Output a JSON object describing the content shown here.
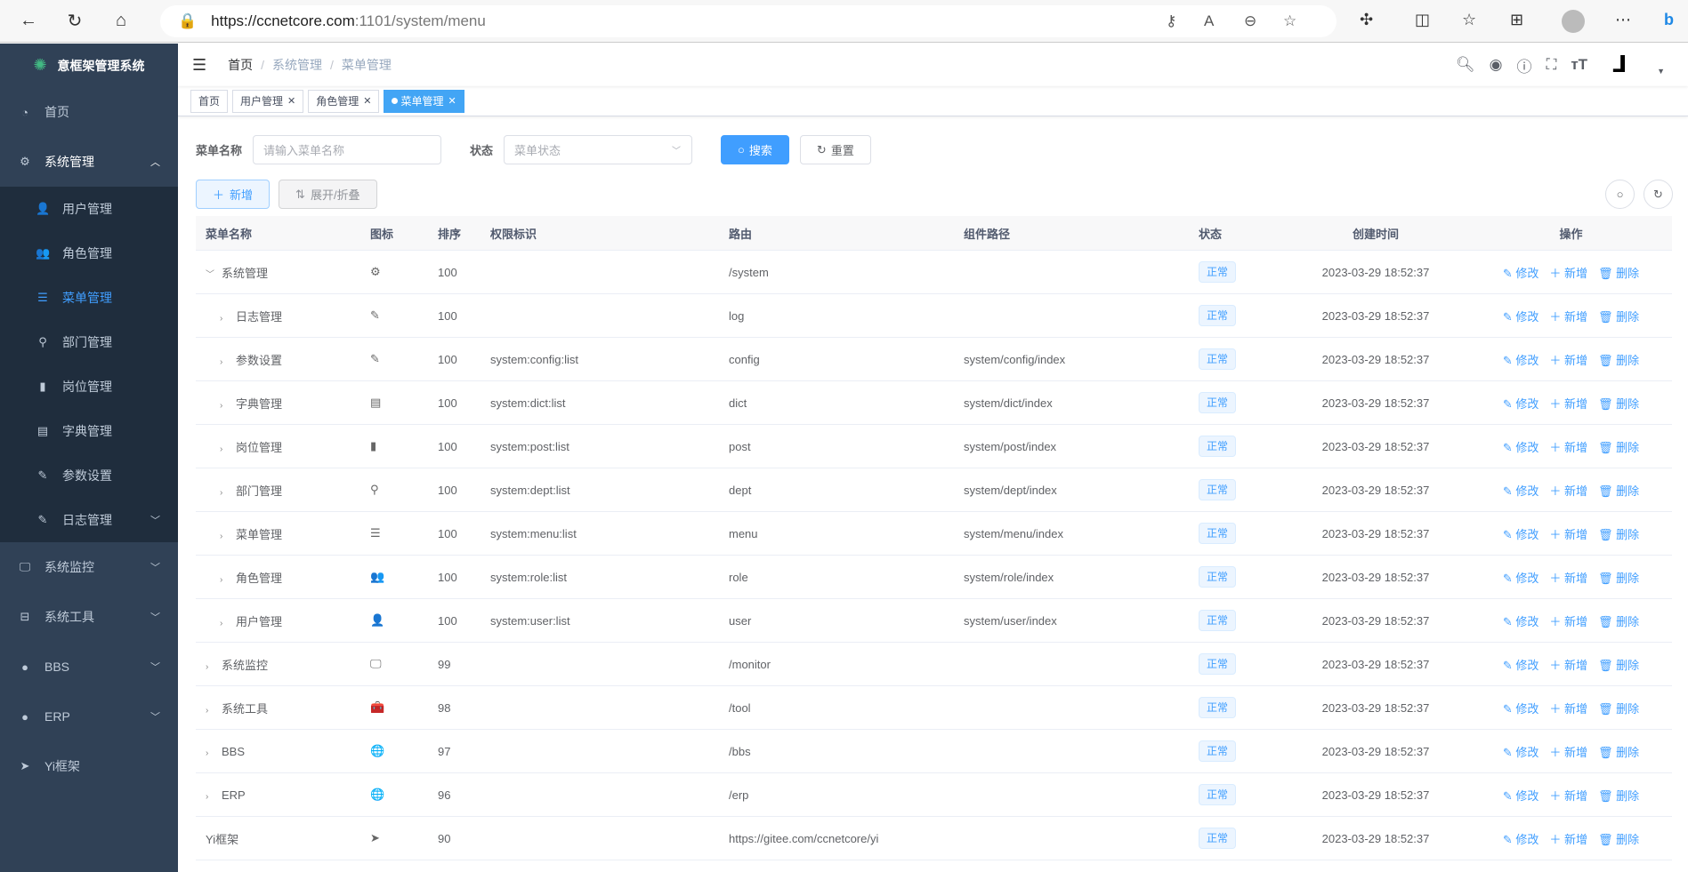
{
  "browser": {
    "url_host": "https://ccnetcore.com",
    "url_rest": ":1101/system/menu"
  },
  "sidebar": {
    "title": "意框架管理系统",
    "items": [
      {
        "label": "首页",
        "icon": "dashboard-icon"
      },
      {
        "label": "系统管理",
        "icon": "gear-icon",
        "expanded": true,
        "children": [
          {
            "label": "用户管理",
            "icon": "user-icon"
          },
          {
            "label": "角色管理",
            "icon": "peoples-icon"
          },
          {
            "label": "菜单管理",
            "icon": "tree-table-icon",
            "active": true
          },
          {
            "label": "部门管理",
            "icon": "tree-icon"
          },
          {
            "label": "岗位管理",
            "icon": "post-icon"
          },
          {
            "label": "字典管理",
            "icon": "dict-icon"
          },
          {
            "label": "参数设置",
            "icon": "edit-icon"
          },
          {
            "label": "日志管理",
            "icon": "log-icon"
          }
        ]
      },
      {
        "label": "系统监控",
        "icon": "monitor-icon"
      },
      {
        "label": "系统工具",
        "icon": "tool-icon"
      },
      {
        "label": "BBS",
        "icon": "globe-icon"
      },
      {
        "label": "ERP",
        "icon": "globe-icon"
      },
      {
        "label": "Yi框架",
        "icon": "send-icon"
      }
    ]
  },
  "breadcrumb": [
    "首页",
    "系统管理",
    "菜单管理"
  ],
  "tags": [
    {
      "label": "首页"
    },
    {
      "label": "用户管理"
    },
    {
      "label": "角色管理"
    },
    {
      "label": "菜单管理",
      "active": true
    }
  ],
  "search": {
    "name_label": "菜单名称",
    "name_placeholder": "请输入菜单名称",
    "status_label": "状态",
    "status_placeholder": "菜单状态",
    "search_btn": "搜索",
    "reset_btn": "重置"
  },
  "toolbar": {
    "add": "新增",
    "toggle": "展开/折叠"
  },
  "colors": {
    "primary": "#409eff",
    "sidebar": "#304156"
  },
  "table": {
    "headers": [
      "菜单名称",
      "图标",
      "排序",
      "权限标识",
      "路由",
      "组件路径",
      "状态",
      "创建时间",
      "操作"
    ],
    "actions": {
      "edit": "修改",
      "add": "新增",
      "delete": "删除"
    },
    "rows": [
      {
        "name": "系统管理",
        "level": 0,
        "arrow": "down",
        "icon": "⚙",
        "sort": "100",
        "perm": "",
        "route": "/system",
        "component": "",
        "status": "正常",
        "created": "2023-03-29 18:52:37"
      },
      {
        "name": "日志管理",
        "level": 1,
        "arrow": "right",
        "icon": "✎",
        "sort": "100",
        "perm": "",
        "route": "log",
        "component": "",
        "status": "正常",
        "created": "2023-03-29 18:52:37"
      },
      {
        "name": "参数设置",
        "level": 1,
        "arrow": "right",
        "icon": "✎",
        "sort": "100",
        "perm": "system:config:list",
        "route": "config",
        "component": "system/config/index",
        "status": "正常",
        "created": "2023-03-29 18:52:37"
      },
      {
        "name": "字典管理",
        "level": 1,
        "arrow": "right",
        "icon": "▤",
        "sort": "100",
        "perm": "system:dict:list",
        "route": "dict",
        "component": "system/dict/index",
        "status": "正常",
        "created": "2023-03-29 18:52:37"
      },
      {
        "name": "岗位管理",
        "level": 1,
        "arrow": "right",
        "icon": "▮",
        "sort": "100",
        "perm": "system:post:list",
        "route": "post",
        "component": "system/post/index",
        "status": "正常",
        "created": "2023-03-29 18:52:37"
      },
      {
        "name": "部门管理",
        "level": 1,
        "arrow": "right",
        "icon": "⚲",
        "sort": "100",
        "perm": "system:dept:list",
        "route": "dept",
        "component": "system/dept/index",
        "status": "正常",
        "created": "2023-03-29 18:52:37"
      },
      {
        "name": "菜单管理",
        "level": 1,
        "arrow": "right",
        "icon": "☰",
        "sort": "100",
        "perm": "system:menu:list",
        "route": "menu",
        "component": "system/menu/index",
        "status": "正常",
        "created": "2023-03-29 18:52:37"
      },
      {
        "name": "角色管理",
        "level": 1,
        "arrow": "right",
        "icon": "👥",
        "sort": "100",
        "perm": "system:role:list",
        "route": "role",
        "component": "system/role/index",
        "status": "正常",
        "created": "2023-03-29 18:52:37"
      },
      {
        "name": "用户管理",
        "level": 1,
        "arrow": "right",
        "icon": "👤",
        "sort": "100",
        "perm": "system:user:list",
        "route": "user",
        "component": "system/user/index",
        "status": "正常",
        "created": "2023-03-29 18:52:37"
      },
      {
        "name": "系统监控",
        "level": 0,
        "arrow": "right",
        "icon": "🖵",
        "sort": "99",
        "perm": "",
        "route": "/monitor",
        "component": "",
        "status": "正常",
        "created": "2023-03-29 18:52:37"
      },
      {
        "name": "系统工具",
        "level": 0,
        "arrow": "right",
        "icon": "🧰",
        "sort": "98",
        "perm": "",
        "route": "/tool",
        "component": "",
        "status": "正常",
        "created": "2023-03-29 18:52:37"
      },
      {
        "name": "BBS",
        "level": 0,
        "arrow": "right",
        "icon": "🌐",
        "sort": "97",
        "perm": "",
        "route": "/bbs",
        "component": "",
        "status": "正常",
        "created": "2023-03-29 18:52:37"
      },
      {
        "name": "ERP",
        "level": 0,
        "arrow": "right",
        "icon": "🌐",
        "sort": "96",
        "perm": "",
        "route": "/erp",
        "component": "",
        "status": "正常",
        "created": "2023-03-29 18:52:37"
      },
      {
        "name": "Yi框架",
        "level": 0,
        "arrow": "",
        "icon": "➤",
        "sort": "90",
        "perm": "",
        "route": "https://gitee.com/ccnetcore/yi",
        "component": "",
        "status": "正常",
        "created": "2023-03-29 18:52:37"
      }
    ]
  }
}
